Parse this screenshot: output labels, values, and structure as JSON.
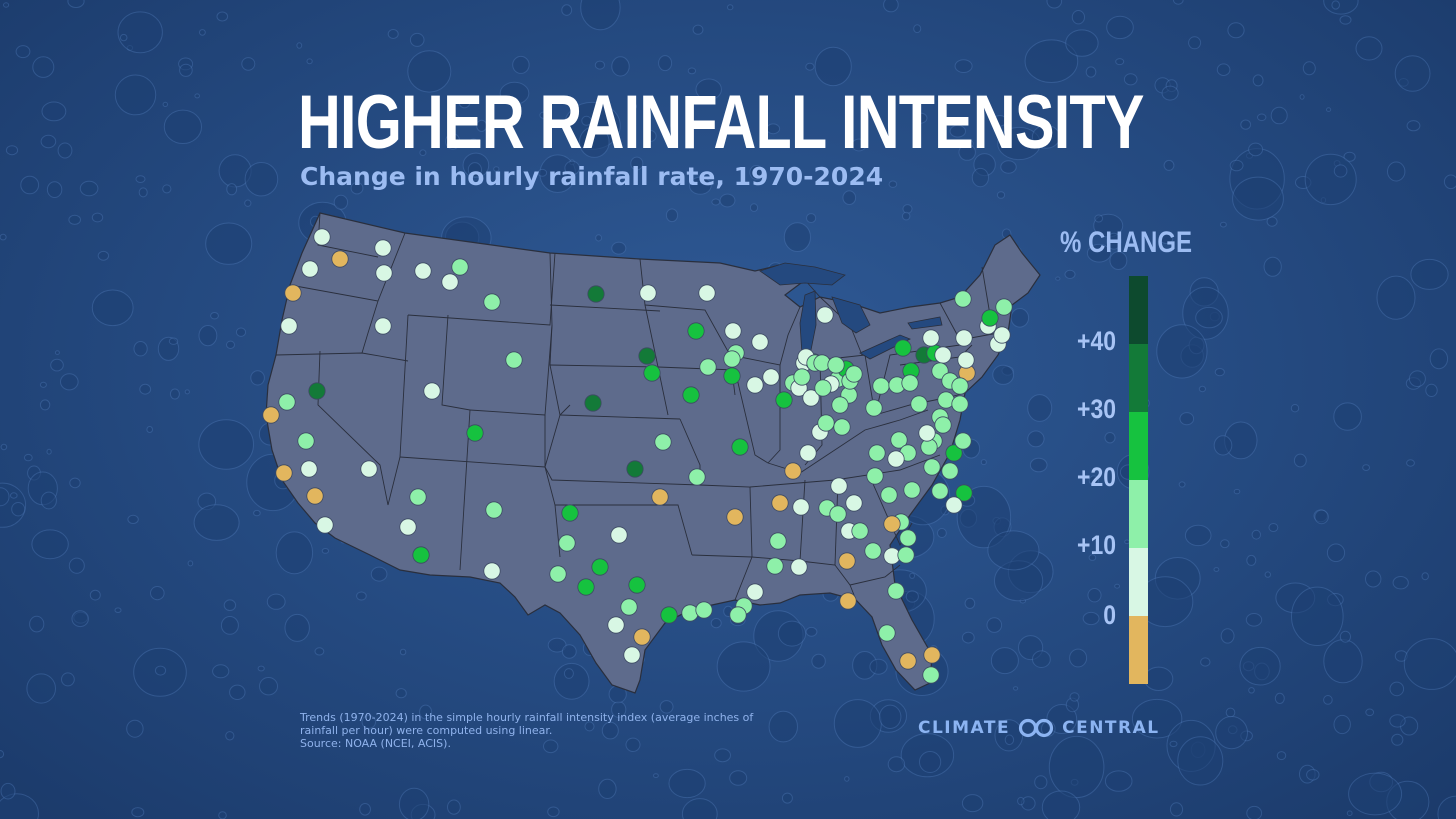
{
  "title": "HIGHER RAINFALL INTENSITY",
  "subtitle": "Change in hourly rainfall rate, 1970-2024",
  "legend": {
    "title": "% CHANGE",
    "ticks": [
      "+40",
      "+30",
      "+20",
      "+10",
      "0"
    ],
    "colors": [
      "#0d4a2e",
      "#137a38",
      "#16c23f",
      "#8ef0a9",
      "#d8f7e4",
      "#e2b65e"
    ]
  },
  "footnote": {
    "lines": [
      "Trends (1970-2024) in the simple hourly rainfall intensity index (average inches of",
      "rainfall per hour) were computed using linear.",
      "Source: NOAA (NCEI, ACIS)."
    ]
  },
  "brand": {
    "left": "CLIMATE",
    "right": "CENTRAL",
    "logo_icon": "climate-central-logo-icon"
  },
  "colors": {
    "background": "#26497f",
    "land": "#5e6b8c",
    "state_border": "#2a2f3d",
    "title": "#ffffff",
    "accent_text": "#9cbcf2"
  }
}
